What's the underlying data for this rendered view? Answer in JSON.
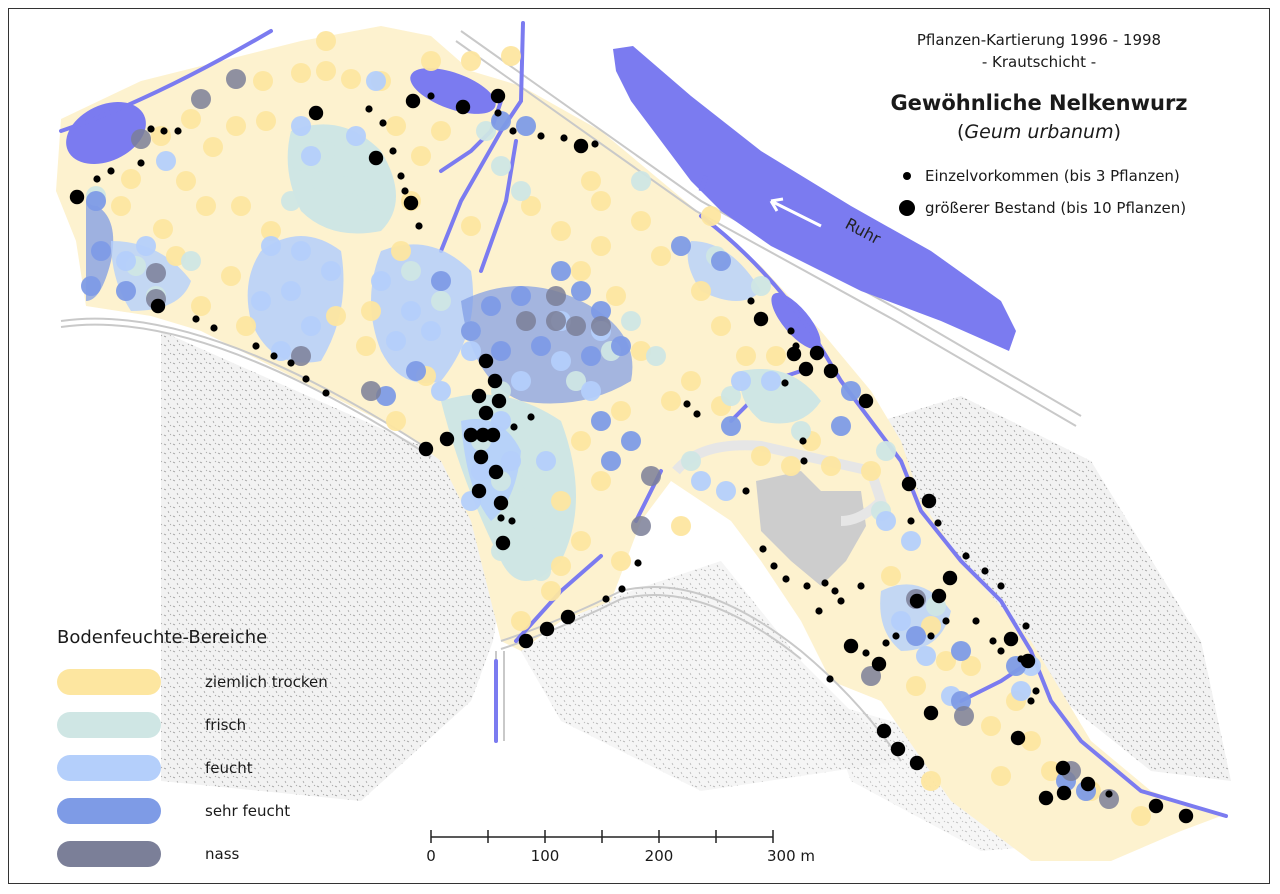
{
  "header": {
    "survey": "Pflanzen-Kartierung 1996 - 1998",
    "layer": "- Krautschicht -",
    "species": "Gewöhnliche Nelkenwurz",
    "latin_open": "(",
    "latin": "Geum urbanum",
    "latin_close": ")"
  },
  "occurrence_legend": {
    "small": "Einzelvorkommen (bis 3 Pflanzen)",
    "large": "größerer Bestand (bis 10 Pflanzen)"
  },
  "river": {
    "label": "Ruhr",
    "color": "#7b7bf0"
  },
  "moisture_legend": {
    "title": "Bodenfeuchte-Bereiche",
    "items": [
      {
        "label": "ziemlich trocken",
        "color": "#fde6a0"
      },
      {
        "label": "frisch",
        "color": "#cfe6e4"
      },
      {
        "label": "feucht",
        "color": "#b4cffb"
      },
      {
        "label": "sehr feucht",
        "color": "#7e9be6"
      },
      {
        "label": "nass",
        "color": "#7b7f98"
      }
    ]
  },
  "scale_bar": {
    "ticks": [
      "0",
      "100",
      "200",
      "300 m"
    ]
  }
}
